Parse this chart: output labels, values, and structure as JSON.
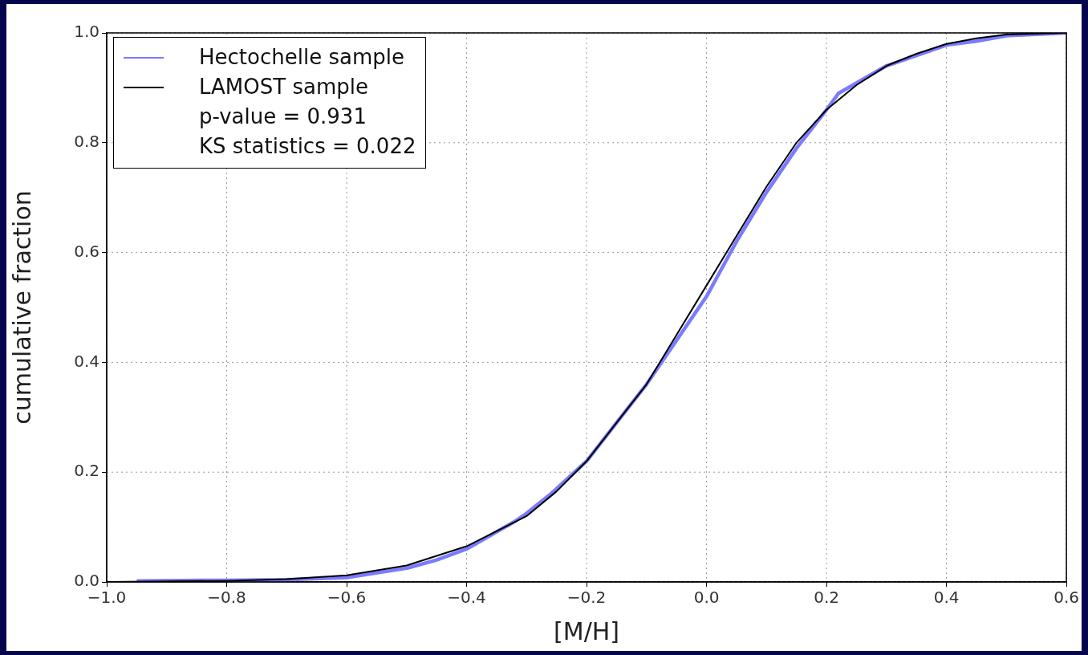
{
  "chart_data": {
    "type": "line",
    "xlabel": "[M/H]",
    "ylabel": "cumulative fraction",
    "xlim": [
      -1.0,
      0.6
    ],
    "ylim": [
      0,
      1.0
    ],
    "xticks": [
      {
        "value": -1,
        "label": "−1.0"
      },
      {
        "value": -0.8,
        "label": "−0.8"
      },
      {
        "value": -0.6,
        "label": "−0.6"
      },
      {
        "value": -0.4,
        "label": "−0.4"
      },
      {
        "value": -0.2,
        "label": "−0.2"
      },
      {
        "value": 0,
        "label": "0.0"
      },
      {
        "value": 0.2,
        "label": "0.2"
      },
      {
        "value": 0.4,
        "label": "0.4"
      },
      {
        "value": 0.6,
        "label": "0.6"
      }
    ],
    "yticks": [
      {
        "value": 0,
        "label": "0.0"
      },
      {
        "value": 0.2,
        "label": "0.2"
      },
      {
        "value": 0.4,
        "label": "0.4"
      },
      {
        "value": 0.6,
        "label": "0.6"
      },
      {
        "value": 0.8,
        "label": "0.8"
      },
      {
        "value": 1,
        "label": "1.0"
      }
    ],
    "grid": true,
    "legend": "top left",
    "marker": "none",
    "line_style": "solid",
    "annotations": [
      "p-value = 0.931",
      "KS statistics = 0.022"
    ],
    "series": [
      {
        "name": "Hectochelle sample",
        "color": "#7b7bff",
        "x": [
          -0.95,
          -0.8,
          -0.7,
          -0.6,
          -0.5,
          -0.45,
          -0.4,
          -0.32,
          -0.3,
          -0.26,
          -0.2,
          -0.15,
          -0.1,
          -0.05,
          0,
          0.03,
          0.05,
          0.1,
          0.15,
          0.2,
          0.22,
          0.3,
          0.4,
          0.45,
          0.5,
          0.6
        ],
        "values": [
          0.002,
          0.003,
          0.004,
          0.008,
          0.025,
          0.04,
          0.06,
          0.11,
          0.125,
          0.16,
          0.22,
          0.29,
          0.36,
          0.44,
          0.52,
          0.58,
          0.62,
          0.71,
          0.79,
          0.86,
          0.89,
          0.94,
          0.978,
          0.985,
          0.995,
          1.0
        ]
      },
      {
        "name": "LAMOST sample",
        "color": "#000000",
        "x": [
          -1.0,
          -0.8,
          -0.7,
          -0.6,
          -0.5,
          -0.4,
          -0.3,
          -0.25,
          -0.2,
          -0.15,
          -0.1,
          -0.05,
          0,
          0.05,
          0.1,
          0.15,
          0.2,
          0.25,
          0.3,
          0.35,
          0.4,
          0.45,
          0.5,
          0.6
        ],
        "values": [
          0,
          0.002,
          0.005,
          0.012,
          0.03,
          0.065,
          0.12,
          0.165,
          0.22,
          0.29,
          0.36,
          0.45,
          0.54,
          0.63,
          0.72,
          0.8,
          0.86,
          0.905,
          0.94,
          0.962,
          0.98,
          0.99,
          0.997,
          1.0
        ]
      }
    ]
  }
}
